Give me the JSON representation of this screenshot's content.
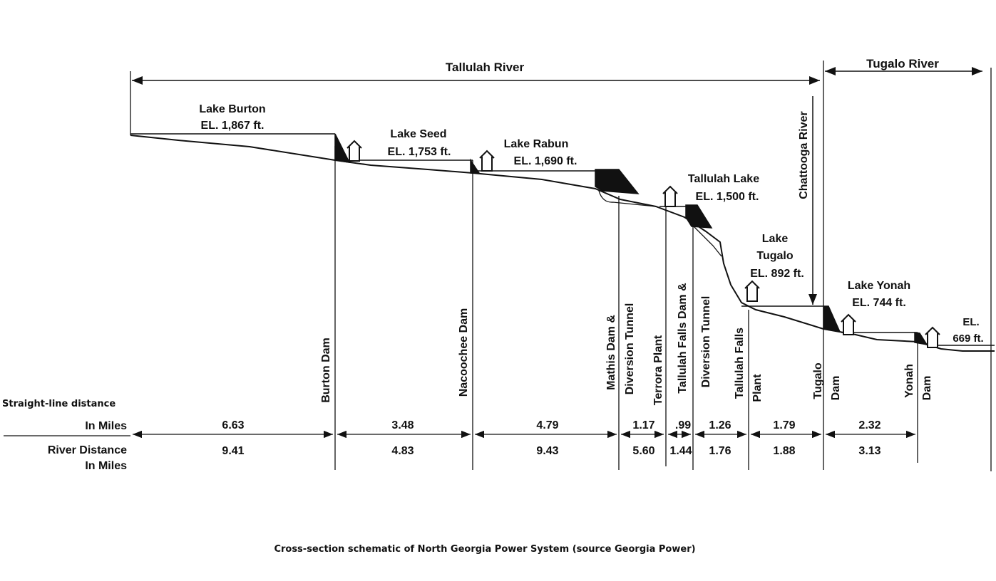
{
  "rivers": {
    "tallulah": "Tallulah River",
    "tugalo": "Tugalo River",
    "chattooga": "Chattooga River"
  },
  "lakes": [
    {
      "name": "Lake Burton",
      "elevation": "EL. 1,867 ft."
    },
    {
      "name": "Lake Seed",
      "elevation": "EL. 1,753 ft."
    },
    {
      "name": "Lake Rabun",
      "elevation": "EL. 1,690 ft."
    },
    {
      "name": "Tallulah Lake",
      "elevation": "EL. 1,500 ft."
    },
    {
      "name_line1": "Lake",
      "name_line2": "Tugalo",
      "elevation": "EL. 892 ft."
    },
    {
      "name": "Lake Yonah",
      "elevation": "EL. 744 ft."
    },
    {
      "elevation_line1": "EL.",
      "elevation_line2": "669 ft."
    }
  ],
  "facilities": [
    {
      "line1": "Burton Dam"
    },
    {
      "line1": "Nacoochee Dam"
    },
    {
      "line1": "Mathis Dam &",
      "line2": "Diversion Tunnel"
    },
    {
      "line1": "Terrora Plant"
    },
    {
      "line1": "Tallulah Falls Dam &",
      "line2": "Diversion Tunnel"
    },
    {
      "line1": "Tallulah Falls",
      "line2": "Plant"
    },
    {
      "line1": "Tugalo",
      "line2": "Dam"
    },
    {
      "line1": "Yonah",
      "line2": "Dam"
    }
  ],
  "distances": {
    "straight_label": "Straight-line distance",
    "straight_unit": "In Miles",
    "river_label": "River Distance",
    "river_unit": "In Miles",
    "straight_line_miles": [
      "6.63",
      "3.48",
      "4.79",
      "1.17",
      ".99",
      "1.26",
      "1.79",
      "2.32"
    ],
    "river_miles": [
      "9.41",
      "4.83",
      "9.43",
      "5.60",
      "1.44",
      "1.76",
      "1.88",
      "3.13"
    ]
  },
  "caption": "Cross-section schematic of North Georgia Power System (source Georgia Power)"
}
